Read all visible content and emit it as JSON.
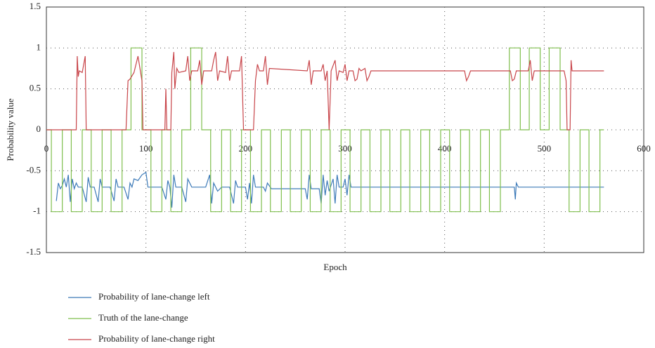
{
  "chart_data": {
    "type": "line",
    "x_label": "Epoch",
    "y_label": "Probability value",
    "xlim": [
      0,
      600
    ],
    "xticks": [
      0,
      100,
      200,
      300,
      400,
      500,
      600
    ],
    "ylim": [
      -1.5,
      1.5
    ],
    "yticks": [
      -1.5,
      -1,
      -0.5,
      0,
      0.5,
      1,
      1.5
    ],
    "grid": true,
    "series": [
      {
        "name": "Probability of lane-change left",
        "color": "#3d7ab8",
        "x": [
          10,
          12,
          14,
          16,
          18,
          20,
          22,
          24,
          26,
          28,
          30,
          32,
          36,
          40,
          42,
          44,
          48,
          52,
          54,
          56,
          60,
          64,
          68,
          70,
          72,
          78,
          82,
          84,
          86,
          88,
          92,
          96,
          100,
          102,
          110,
          116,
          120,
          122,
          124,
          126,
          128,
          130,
          136,
          140,
          142,
          146,
          160,
          164,
          166,
          168,
          172,
          176,
          184,
          188,
          190,
          192,
          200,
          202,
          204,
          206,
          208,
          210,
          218,
          220,
          222,
          226,
          260,
          262,
          264,
          266,
          274,
          276,
          278,
          280,
          282,
          284,
          288,
          290,
          292,
          294,
          298,
          300,
          302,
          304,
          306,
          470,
          471,
          472,
          474,
          560
        ],
        "values": [
          -0.87,
          -0.65,
          -0.72,
          -0.68,
          -0.6,
          -0.7,
          -0.55,
          -0.88,
          -0.6,
          -0.72,
          -0.65,
          -0.7,
          -0.7,
          -0.88,
          -0.58,
          -0.7,
          -0.7,
          -0.88,
          -0.6,
          -0.7,
          -0.7,
          -0.7,
          -0.87,
          -0.6,
          -0.7,
          -0.7,
          -0.85,
          -0.65,
          -0.7,
          -0.6,
          -0.62,
          -0.55,
          -0.52,
          -0.7,
          -0.7,
          -0.7,
          -0.85,
          -0.62,
          -0.7,
          -0.95,
          -0.55,
          -0.7,
          -0.7,
          -0.88,
          -0.6,
          -0.7,
          -0.7,
          -0.55,
          -0.9,
          -0.65,
          -0.75,
          -0.7,
          -0.7,
          -0.9,
          -0.62,
          -0.7,
          -0.7,
          -0.85,
          -0.65,
          -0.9,
          -0.55,
          -0.7,
          -0.7,
          -0.75,
          -0.65,
          -0.72,
          -0.72,
          -0.85,
          -0.55,
          -0.72,
          -0.72,
          -0.9,
          -0.55,
          -0.8,
          -0.62,
          -0.75,
          -0.6,
          -0.9,
          -0.55,
          -0.7,
          -0.7,
          -0.6,
          -0.8,
          -0.55,
          -0.7,
          -0.7,
          -0.85,
          -0.65,
          -0.7,
          -0.7
        ]
      },
      {
        "name": "Truth of the lane-change",
        "color": "#7fbf4d",
        "x": [
          0,
          5,
          5,
          16,
          16,
          25,
          25,
          36,
          36,
          45,
          45,
          56,
          56,
          65,
          65,
          76,
          76,
          85,
          85,
          96,
          96,
          105,
          105,
          116,
          116,
          125,
          125,
          136,
          136,
          145,
          145,
          156,
          156,
          165,
          165,
          176,
          176,
          185,
          185,
          196,
          196,
          205,
          205,
          216,
          216,
          225,
          225,
          236,
          236,
          245,
          245,
          256,
          256,
          265,
          265,
          276,
          276,
          285,
          285,
          296,
          296,
          305,
          305,
          316,
          316,
          325,
          325,
          336,
          336,
          345,
          345,
          356,
          356,
          365,
          365,
          376,
          376,
          385,
          385,
          396,
          396,
          405,
          405,
          416,
          416,
          425,
          425,
          436,
          436,
          445,
          445,
          456,
          456,
          465,
          465,
          476,
          476,
          485,
          485,
          496,
          496,
          505,
          505,
          516,
          516,
          525,
          525,
          536,
          536,
          545,
          545,
          556,
          556,
          560
        ],
        "values": [
          0,
          0,
          -1,
          -1,
          0,
          0,
          -1,
          -1,
          0,
          0,
          -1,
          -1,
          0,
          0,
          -1,
          -1,
          0,
          0,
          1,
          1,
          0,
          0,
          -1,
          -1,
          0,
          0,
          -1,
          -1,
          0,
          0,
          1,
          1,
          0,
          0,
          -1,
          -1,
          0,
          0,
          -1,
          -1,
          0,
          0,
          -1,
          -1,
          0,
          0,
          -1,
          -1,
          0,
          0,
          -1,
          -1,
          0,
          0,
          -1,
          -1,
          0,
          0,
          -1,
          -1,
          0,
          0,
          -1,
          -1,
          0,
          0,
          -1,
          -1,
          0,
          0,
          -1,
          -1,
          0,
          0,
          -1,
          -1,
          0,
          0,
          -1,
          -1,
          0,
          0,
          -1,
          -1,
          0,
          0,
          -1,
          -1,
          0,
          0,
          -1,
          -1,
          0,
          0,
          1,
          1,
          0,
          0,
          1,
          1,
          0,
          0,
          1,
          1,
          0,
          0,
          -1,
          -1,
          0,
          0,
          -1,
          -1,
          0,
          0
        ]
      },
      {
        "name": "Probability of lane-change right",
        "color": "#c8454a",
        "x": [
          0,
          30,
          31,
          32,
          33,
          36,
          39,
          40,
          80,
          82,
          84,
          88,
          92,
          96,
          97,
          119,
          120,
          121,
          125,
          126,
          128,
          129,
          131,
          133,
          140,
          142,
          144,
          146,
          152,
          154,
          156,
          158,
          166,
          168,
          170,
          172,
          174,
          180,
          182,
          184,
          186,
          194,
          196,
          198,
          208,
          210,
          212,
          214,
          218,
          220,
          222,
          224,
          262,
          264,
          266,
          268,
          276,
          278,
          280,
          282,
          284,
          286,
          290,
          292,
          294,
          298,
          300,
          302,
          304,
          308,
          310,
          312,
          314,
          316,
          320,
          322,
          324,
          326,
          420,
          422,
          424,
          426,
          466,
          468,
          470,
          472,
          484,
          486,
          488,
          490,
          520,
          522,
          523,
          526,
          527,
          528,
          560
        ],
        "values": [
          0,
          0,
          0.9,
          0.65,
          0.72,
          0.7,
          0.9,
          0,
          0,
          0.6,
          0.62,
          0.7,
          0.9,
          0.6,
          0,
          0,
          0.5,
          0,
          0,
          0.7,
          0.95,
          0.5,
          0.75,
          0.7,
          0.72,
          0.9,
          0.6,
          0.72,
          0.72,
          0.85,
          0.55,
          0.72,
          0.72,
          0.85,
          0.95,
          0.6,
          0.72,
          0.7,
          0.9,
          0.6,
          0.72,
          0.72,
          0.9,
          0,
          0,
          0.6,
          0.8,
          0.72,
          0.72,
          0.9,
          0.55,
          0.75,
          0.72,
          0.85,
          0.55,
          0.72,
          0.72,
          0.8,
          0.6,
          0.72,
          0,
          0.72,
          0.85,
          0.6,
          0.72,
          0.7,
          0.8,
          0.6,
          0.72,
          0.72,
          0.6,
          0.62,
          0.75,
          0.72,
          0.75,
          0.6,
          0.65,
          0.72,
          0.72,
          0.6,
          0.65,
          0.72,
          0.72,
          0.6,
          0.62,
          0.72,
          0.72,
          0.85,
          0.6,
          0.72,
          0.72,
          0.6,
          0,
          0,
          0.85,
          0.72,
          0.72
        ]
      }
    ]
  }
}
